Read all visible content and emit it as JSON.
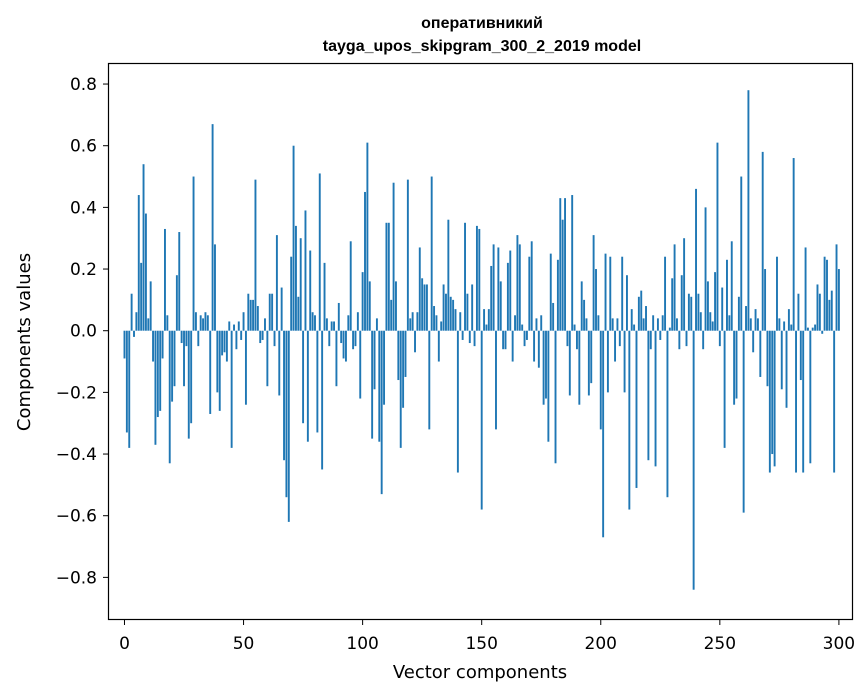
{
  "chart_data": {
    "type": "bar",
    "title": "оперативникий",
    "subtitle": "tayga_upos_skipgram_300_2_2019 model",
    "xlabel": "Vector components",
    "ylabel": "Components values",
    "xlim": [
      -6.5,
      305.5
    ],
    "ylim": [
      -0.935,
      0.865
    ],
    "x_ticks": [
      0,
      50,
      100,
      150,
      200,
      250,
      300
    ],
    "x_tick_labels": [
      "0",
      "50",
      "100",
      "150",
      "200",
      "250",
      "300"
    ],
    "y_ticks": [
      0.8,
      0.6,
      0.4,
      0.2,
      0.0,
      -0.2,
      -0.4,
      -0.6,
      -0.8
    ],
    "y_tick_labels": [
      "0.8",
      "0.6",
      "0.4",
      "0.2",
      "0.0",
      "−0.2",
      "−0.4",
      "−0.6",
      "−0.8"
    ],
    "bar_color": "#1f77b4",
    "x": "indices 0–299",
    "values": [
      -0.09,
      -0.33,
      -0.38,
      0.12,
      -0.02,
      0.06,
      0.44,
      0.22,
      0.54,
      0.38,
      0.04,
      0.16,
      -0.1,
      -0.37,
      -0.28,
      -0.26,
      -0.09,
      0.33,
      0.05,
      -0.43,
      -0.23,
      -0.18,
      0.18,
      0.32,
      -0.04,
      -0.18,
      -0.05,
      -0.35,
      -0.3,
      0.5,
      0.06,
      -0.05,
      0.05,
      0.04,
      0.06,
      0.05,
      -0.27,
      0.67,
      0.28,
      -0.2,
      -0.26,
      -0.08,
      -0.07,
      -0.1,
      0.03,
      -0.38,
      0.02,
      -0.06,
      0.03,
      -0.03,
      0.06,
      -0.24,
      0.12,
      0.1,
      0.1,
      0.49,
      0.08,
      -0.04,
      -0.03,
      0.04,
      -0.18,
      0.12,
      0.12,
      -0.05,
      0.31,
      -0.21,
      0.14,
      -0.42,
      -0.54,
      -0.62,
      0.24,
      0.6,
      0.34,
      0.11,
      0.3,
      -0.3,
      0.39,
      -0.36,
      0.26,
      0.06,
      0.05,
      -0.33,
      0.51,
      -0.45,
      0.22,
      0.04,
      -0.05,
      0.03,
      0.03,
      -0.18,
      0.09,
      -0.04,
      -0.09,
      -0.1,
      0.05,
      0.29,
      -0.06,
      -0.05,
      0.06,
      -0.22,
      0.19,
      0.45,
      0.61,
      0.16,
      -0.35,
      -0.19,
      0.04,
      -0.36,
      -0.53,
      -0.24,
      0.35,
      0.35,
      0.1,
      0.48,
      0.16,
      -0.16,
      -0.38,
      -0.25,
      -0.15,
      0.49,
      0.04,
      0.06,
      -0.07,
      0.06,
      0.27,
      0.17,
      0.15,
      0.15,
      -0.32,
      0.5,
      0.08,
      0.05,
      -0.1,
      0.03,
      0.15,
      0.12,
      0.36,
      0.11,
      0.1,
      0.07,
      -0.46,
      0.06,
      -0.03,
      0.35,
      0.12,
      -0.04,
      0.15,
      -0.05,
      0.34,
      0.33,
      -0.58,
      0.07,
      0.02,
      0.07,
      0.21,
      0.28,
      -0.32,
      0.27,
      0.16,
      -0.06,
      -0.06,
      0.22,
      0.26,
      -0.1,
      0.05,
      0.31,
      0.28,
      0.02,
      -0.05,
      -0.03,
      0.24,
      0.29,
      -0.1,
      0.04,
      -0.12,
      0.05,
      -0.24,
      -0.22,
      -0.36,
      0.25,
      0.09,
      -0.43,
      0.23,
      0.43,
      0.36,
      0.43,
      -0.05,
      -0.21,
      0.44,
      0.02,
      -0.06,
      -0.24,
      0.16,
      0.1,
      0.04,
      -0.21,
      -0.17,
      0.31,
      0.2,
      0.05,
      -0.32,
      -0.67,
      0.25,
      -0.2,
      0.24,
      0.04,
      -0.1,
      0.04,
      -0.05,
      0.24,
      -0.2,
      0.18,
      -0.58,
      0.07,
      0.02,
      -0.51,
      0.11,
      0.13,
      0.04,
      0.08,
      -0.42,
      -0.06,
      0.05,
      -0.44,
      0.04,
      -0.03,
      0.05,
      0.24,
      -0.54,
      0.01,
      0.17,
      0.28,
      0.04,
      -0.06,
      0.18,
      0.3,
      -0.05,
      0.12,
      0.11,
      -0.84,
      0.46,
      0.12,
      0.06,
      -0.06,
      0.4,
      0.16,
      0.06,
      0.03,
      0.19,
      0.61,
      -0.05,
      0.14,
      -0.38,
      0.23,
      0.05,
      0.29,
      -0.24,
      -0.22,
      0.11,
      0.5,
      -0.59,
      0.08,
      0.78,
      0.04,
      -0.07,
      0.07,
      0.04,
      -0.15,
      0.58,
      0.2,
      -0.18,
      -0.46,
      -0.4,
      -0.44,
      0.24,
      0.04,
      -0.19,
      0.03,
      -0.25,
      0.07,
      0.02,
      0.56,
      -0.46,
      0.12,
      -0.16,
      -0.46,
      0.27,
      0.01,
      -0.43,
      0.01,
      0.02,
      0.15,
      0.12,
      -0.01,
      0.24,
      0.23,
      0.1,
      0.13,
      -0.46,
      0.28,
      0.2
    ]
  }
}
